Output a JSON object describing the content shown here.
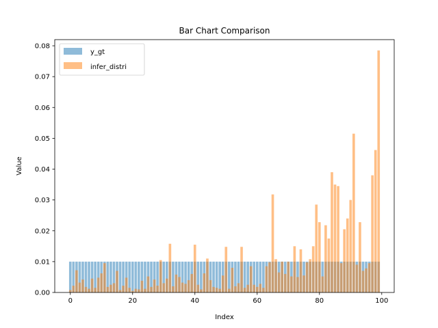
{
  "chart_data": {
    "type": "bar",
    "title": "Bar Chart Comparison",
    "xlabel": "Index",
    "ylabel": "Value",
    "xlim": [
      -5,
      104
    ],
    "ylim": [
      0,
      0.082
    ],
    "xticks": [
      0,
      20,
      40,
      60,
      80,
      100
    ],
    "yticks": [
      0.0,
      0.01,
      0.02,
      0.03,
      0.04,
      0.05,
      0.06,
      0.07,
      0.08
    ],
    "grid": false,
    "legend_position": "upper-left",
    "series": [
      {
        "name": "y_gt",
        "color": "#1f77b4",
        "opacity": 0.5,
        "values": [
          0.01,
          0.01,
          0.01,
          0.01,
          0.01,
          0.01,
          0.01,
          0.01,
          0.01,
          0.01,
          0.01,
          0.01,
          0.01,
          0.01,
          0.01,
          0.01,
          0.01,
          0.01,
          0.01,
          0.01,
          0.01,
          0.01,
          0.01,
          0.01,
          0.01,
          0.01,
          0.01,
          0.01,
          0.01,
          0.01,
          0.01,
          0.01,
          0.01,
          0.01,
          0.01,
          0.01,
          0.01,
          0.01,
          0.01,
          0.01,
          0.01,
          0.01,
          0.01,
          0.01,
          0.01,
          0.01,
          0.01,
          0.01,
          0.01,
          0.01,
          0.01,
          0.01,
          0.01,
          0.01,
          0.01,
          0.01,
          0.01,
          0.01,
          0.01,
          0.01,
          0.01,
          0.01,
          0.01,
          0.01,
          0.01,
          0.01,
          0.01,
          0.01,
          0.01,
          0.01,
          0.01,
          0.01,
          0.01,
          0.01,
          0.01,
          0.01,
          0.01,
          0.01,
          0.01,
          0.01,
          0.01,
          0.01,
          0.01,
          0.01,
          0.01,
          0.01,
          0.01,
          0.01,
          0.01,
          0.01,
          0.01,
          0.01,
          0.01,
          0.01,
          0.01,
          0.01,
          0.01,
          0.01,
          0.01,
          0.01
        ]
      },
      {
        "name": "infer_distri",
        "color": "#ff7f0e",
        "opacity": 0.5,
        "values": [
          0.0008,
          0.0022,
          0.0072,
          0.0032,
          0.0042,
          0.0018,
          0.0012,
          0.0045,
          0.0015,
          0.0048,
          0.0062,
          0.0095,
          0.0018,
          0.0025,
          0.003,
          0.007,
          0.0008,
          0.0022,
          0.0048,
          0.0015,
          0.0005,
          0.0012,
          0.001,
          0.0038,
          0.0012,
          0.0052,
          0.0018,
          0.0042,
          0.0022,
          0.0105,
          0.003,
          0.0045,
          0.0158,
          0.002,
          0.0058,
          0.005,
          0.0032,
          0.0028,
          0.004,
          0.006,
          0.0155,
          0.0025,
          0.001,
          0.0062,
          0.011,
          0.004,
          0.0018,
          0.0015,
          0.0012,
          0.0055,
          0.0148,
          0.0012,
          0.008,
          0.002,
          0.003,
          0.0148,
          0.0015,
          0.0025,
          0.0085,
          0.0025,
          0.0018,
          0.0028,
          0.0015,
          0.0085,
          0.0098,
          0.0318,
          0.0108,
          0.0065,
          0.01,
          0.006,
          0.01,
          0.0052,
          0.015,
          0.005,
          0.014,
          0.0055,
          0.0098,
          0.0108,
          0.015,
          0.0285,
          0.0228,
          0.0052,
          0.0218,
          0.0175,
          0.039,
          0.035,
          0.0345,
          0.0095,
          0.0205,
          0.024,
          0.03,
          0.0515,
          0.009,
          0.0228,
          0.007,
          0.0078,
          0.0095,
          0.038,
          0.0462,
          0.0785
        ]
      }
    ]
  }
}
